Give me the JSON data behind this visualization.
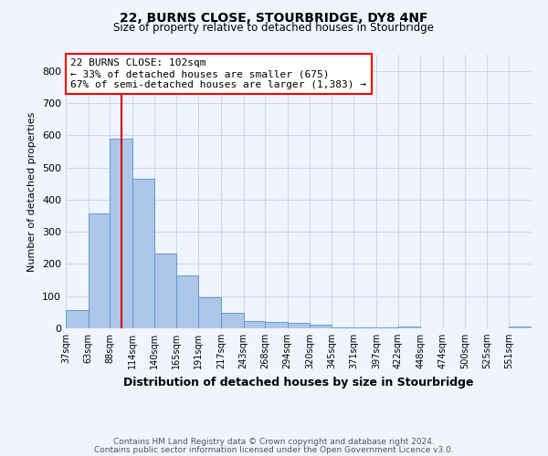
{
  "title1": "22, BURNS CLOSE, STOURBRIDGE, DY8 4NF",
  "title2": "Size of property relative to detached houses in Stourbridge",
  "xlabel": "Distribution of detached houses by size in Stourbridge",
  "ylabel": "Number of detached properties",
  "bin_labels": [
    "37sqm",
    "63sqm",
    "88sqm",
    "114sqm",
    "140sqm",
    "165sqm",
    "191sqm",
    "217sqm",
    "243sqm",
    "268sqm",
    "294sqm",
    "320sqm",
    "345sqm",
    "371sqm",
    "397sqm",
    "422sqm",
    "448sqm",
    "474sqm",
    "500sqm",
    "525sqm",
    "551sqm"
  ],
  "bin_edges": [
    37,
    63,
    88,
    114,
    140,
    165,
    191,
    217,
    243,
    268,
    294,
    320,
    345,
    371,
    397,
    422,
    448,
    474,
    500,
    525,
    551,
    577
  ],
  "values": [
    58,
    357,
    590,
    465,
    232,
    163,
    95,
    47,
    22,
    19,
    16,
    12,
    4,
    3,
    2,
    6,
    1,
    1,
    1,
    1,
    7
  ],
  "bar_color": "#aec6e8",
  "bar_edge_color": "#5a9fd4",
  "red_line_x": 102,
  "annotation_line1": "22 BURNS CLOSE: 102sqm",
  "annotation_line2": "← 33% of detached houses are smaller (675)",
  "annotation_line3": "67% of semi-detached houses are larger (1,383) →",
  "annotation_box_color": "white",
  "annotation_box_edge_color": "red",
  "red_line_color": "#cc0000",
  "ylim": [
    0,
    850
  ],
  "yticks": [
    0,
    100,
    200,
    300,
    400,
    500,
    600,
    700,
    800
  ],
  "footer1": "Contains HM Land Registry data © Crown copyright and database right 2024.",
  "footer2": "Contains public sector information licensed under the Open Government Licence v3.0.",
  "background_color": "#f0f4ff",
  "grid_color": "#c8d8ee"
}
